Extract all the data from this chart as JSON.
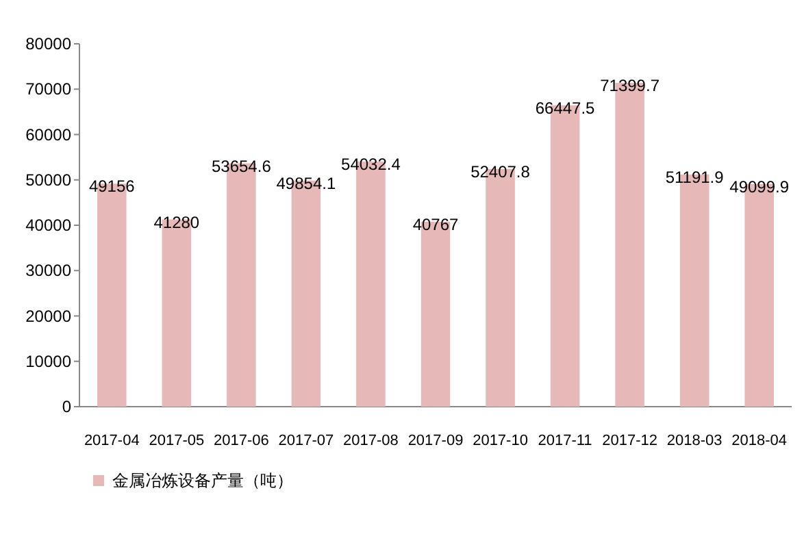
{
  "chart_data": {
    "type": "bar",
    "categories": [
      "2017-04",
      "2017-05",
      "2017-06",
      "2017-07",
      "2017-08",
      "2017-09",
      "2017-10",
      "2017-11",
      "2017-12",
      "2018-03",
      "2018-04"
    ],
    "series": [
      {
        "name": "金属冶炼设备产量（吨）",
        "color": "#e6b9b8",
        "values": [
          49156,
          41280,
          53654.6,
          49854.1,
          54032.4,
          40767,
          52407.8,
          66447.5,
          71399.7,
          51191.9,
          49099.9
        ]
      }
    ],
    "ylim": [
      0,
      80000
    ],
    "yticks": [
      0,
      10000,
      20000,
      30000,
      40000,
      50000,
      60000,
      70000,
      80000
    ],
    "grid": false,
    "legend": "bottom left",
    "data_labels": true
  }
}
